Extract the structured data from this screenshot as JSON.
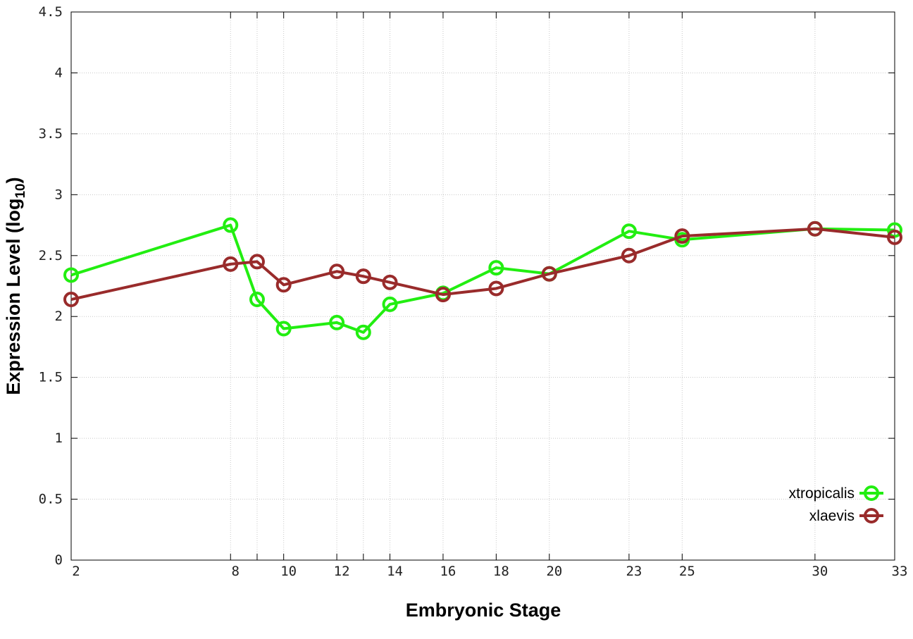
{
  "chart_data": {
    "type": "line",
    "xlabel": "Embryonic Stage",
    "ylabel": "Expression Level (log",
    "ylabel_sub": "10",
    "ylabel_close": ")",
    "x_ticks": [
      "2",
      "8",
      "9",
      "10",
      "12",
      "13",
      "14",
      "16",
      "18",
      "20",
      "23",
      "25",
      "30",
      "33"
    ],
    "x_tick_values": [
      2,
      8,
      9,
      10,
      12,
      13,
      14,
      16,
      18,
      20,
      23,
      25,
      30,
      33
    ],
    "x_tick_labels_shown": [
      "2",
      "8",
      "10",
      "12",
      "14",
      "16",
      "18",
      "20",
      "23",
      "25",
      "30",
      "33"
    ],
    "xlim": [
      2,
      33
    ],
    "ylim": [
      0,
      4.5
    ],
    "y_ticks": [
      "0",
      "0.5",
      "1",
      "1.5",
      "2",
      "2.5",
      "3",
      "3.5",
      "4",
      "4.5"
    ],
    "grid": true,
    "legend_position": "bottom-right",
    "series": [
      {
        "name": "xtropicalis",
        "color": "#22ee11",
        "values": [
          2.34,
          2.75,
          2.14,
          1.9,
          1.95,
          1.87,
          2.1,
          2.19,
          2.4,
          2.35,
          2.7,
          2.63,
          2.72,
          2.71
        ]
      },
      {
        "name": "xlaevis",
        "color": "#992b2b",
        "values": [
          2.14,
          2.43,
          2.45,
          2.26,
          2.37,
          2.33,
          2.28,
          2.18,
          2.23,
          2.35,
          2.5,
          2.66,
          2.72,
          2.65
        ]
      }
    ]
  }
}
